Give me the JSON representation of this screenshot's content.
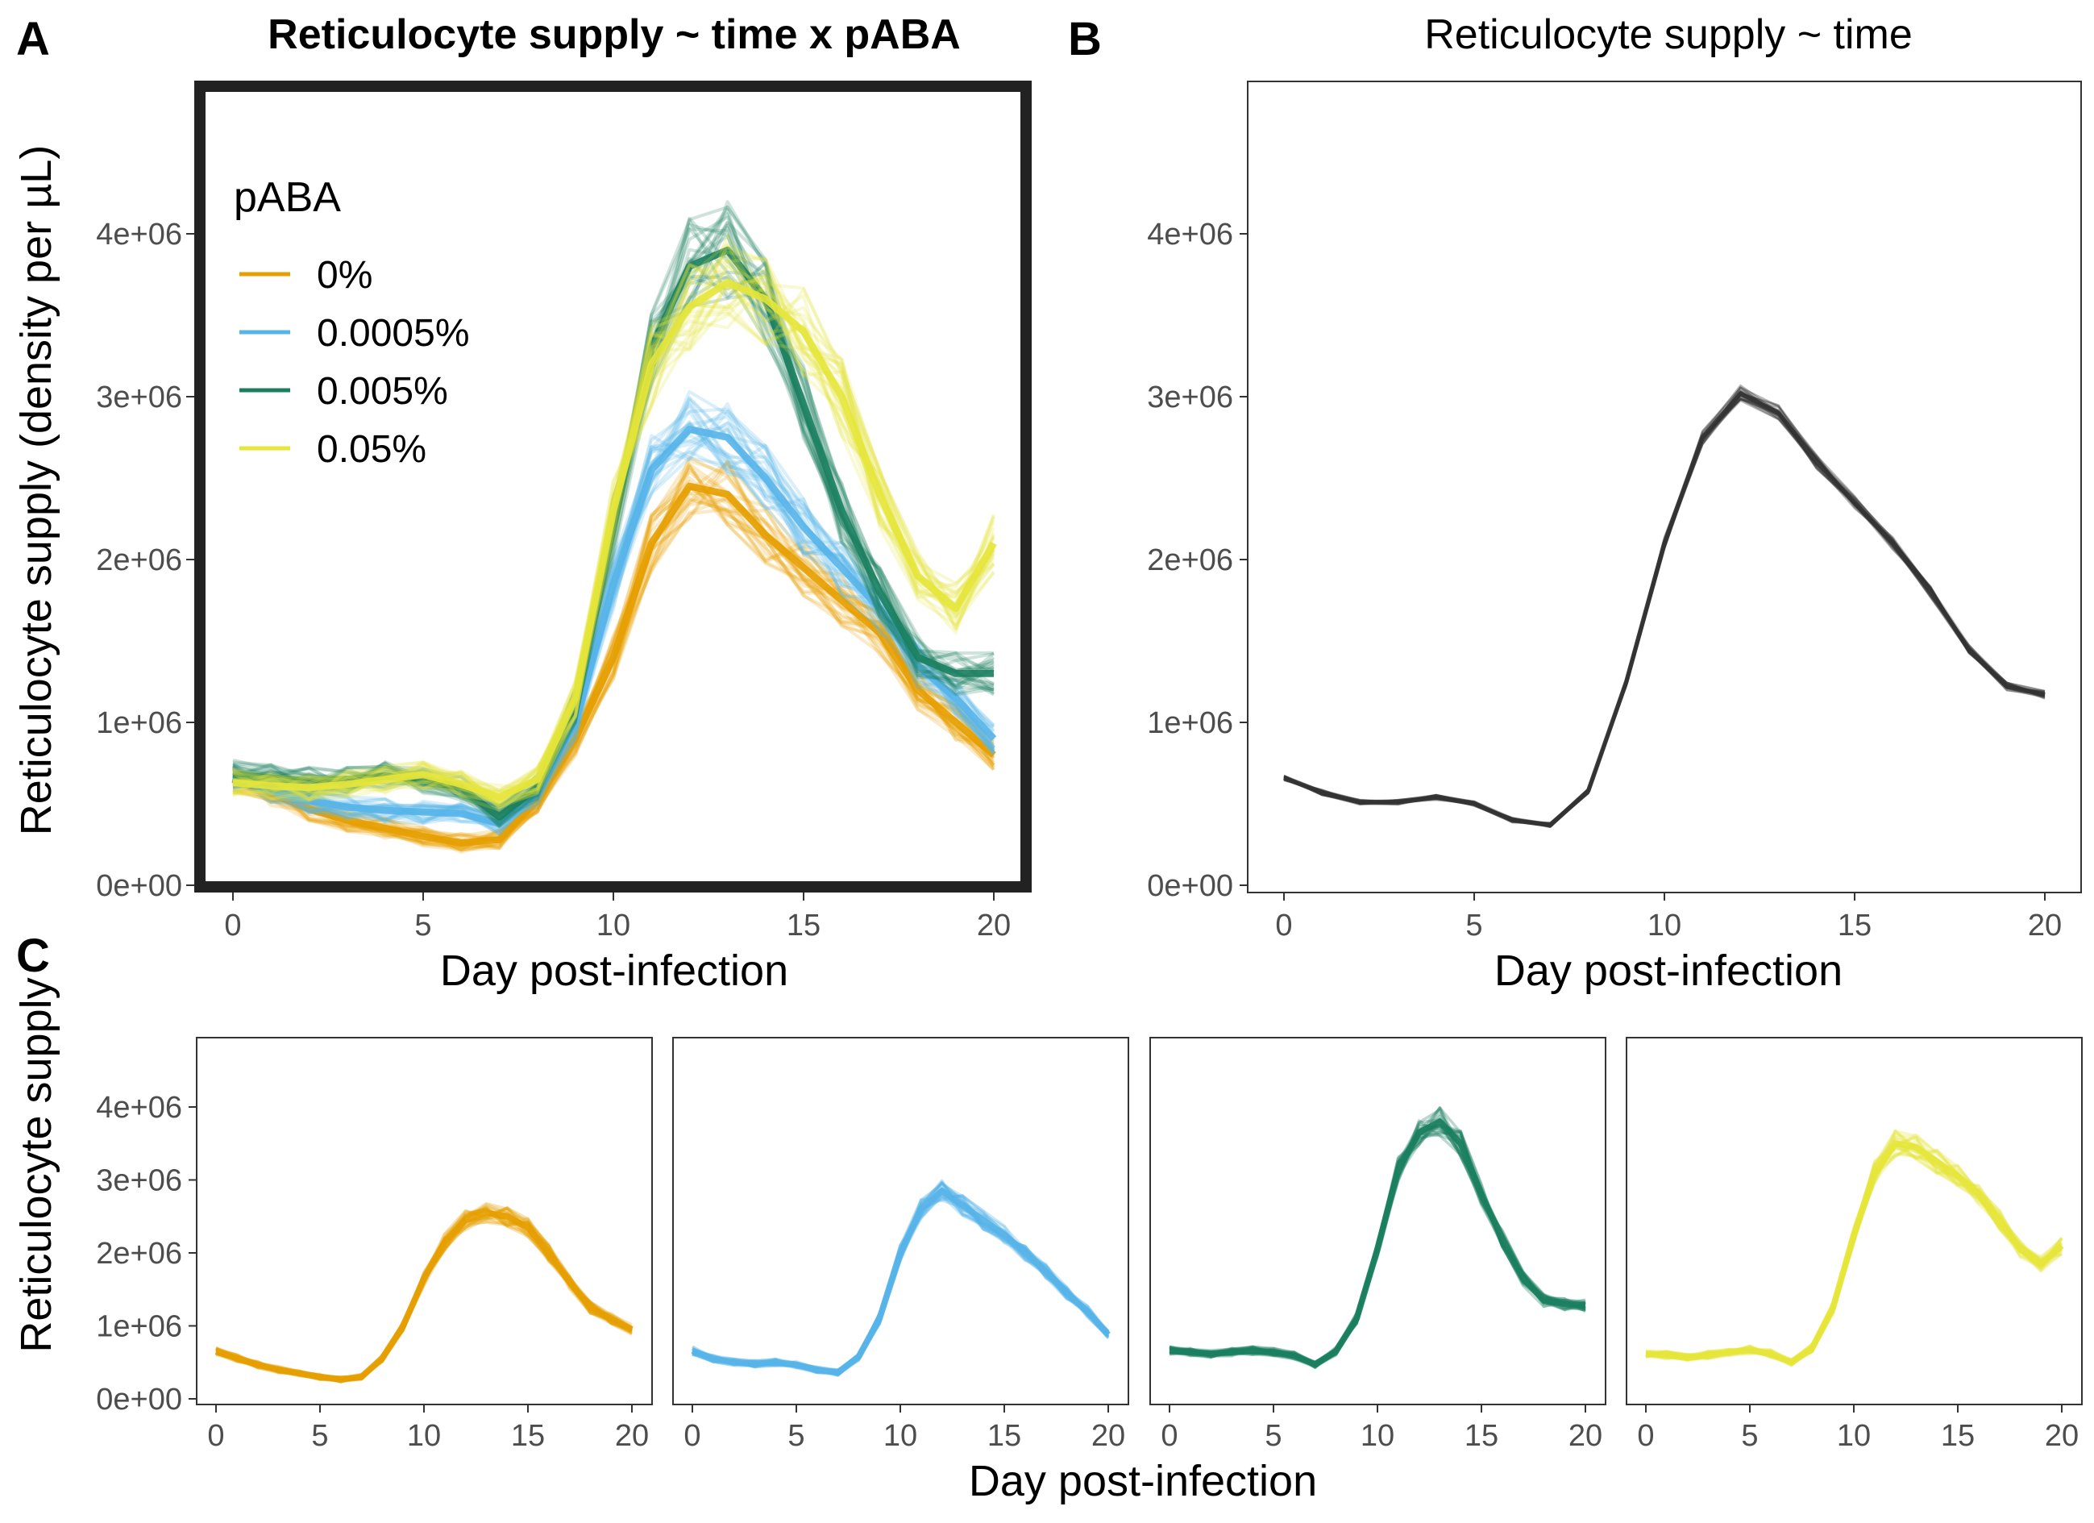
{
  "panels": {
    "A": {
      "letter": "A",
      "title": "Reticulocyte supply ~ time x pABA"
    },
    "B": {
      "letter": "B",
      "title": "Reticulocyte supply ~ time"
    },
    "C": {
      "letter": "C",
      "title": ""
    }
  },
  "axes": {
    "ylabel_AB": "Reticulocyte supply (density per µL)",
    "ylabel_C": "Reticulocyte supply",
    "xlabel": "Day post-infection",
    "x_ticks": [
      "0",
      "5",
      "10",
      "15",
      "20"
    ],
    "y_ticks": [
      "0e+00",
      "1e+06",
      "2e+06",
      "3e+06",
      "4e+06"
    ]
  },
  "legend": {
    "title": "pABA",
    "items": [
      {
        "label": "0%",
        "color": "#E69F00"
      },
      {
        "label": "0.0005%",
        "color": "#56B4E9"
      },
      {
        "label": "0.005%",
        "color": "#1B7F5F"
      },
      {
        "label": "0.05%",
        "color": "#E5E53A"
      }
    ]
  },
  "chart_data": [
    {
      "panel": "A",
      "type": "line",
      "title": "Reticulocyte supply ~ time x pABA",
      "xlabel": "Day post-infection",
      "ylabel": "Reticulocyte supply (density per µL)",
      "xlim": [
        -0.5,
        20.5
      ],
      "ylim": [
        -50000,
        4900000
      ],
      "grid": false,
      "legend_position": "top-left inside",
      "x": [
        0,
        1,
        2,
        3,
        4,
        5,
        6,
        7,
        8,
        9,
        10,
        11,
        12,
        13,
        14,
        15,
        16,
        17,
        18,
        19,
        20
      ],
      "series": [
        {
          "name": "0%",
          "color": "#E69F00",
          "values": [
            650000,
            560000,
            470000,
            400000,
            350000,
            300000,
            260000,
            280000,
            520000,
            900000,
            1400000,
            2100000,
            2450000,
            2400000,
            2150000,
            1950000,
            1750000,
            1550000,
            1200000,
            1000000,
            800000
          ]
        },
        {
          "name": "0.0005%",
          "color": "#56B4E9",
          "values": [
            660000,
            580000,
            520000,
            480000,
            460000,
            450000,
            440000,
            380000,
            560000,
            1000000,
            1850000,
            2550000,
            2800000,
            2750000,
            2500000,
            2200000,
            1950000,
            1700000,
            1350000,
            1150000,
            900000
          ]
        },
        {
          "name": "0.005%",
          "color": "#1B7F5F",
          "values": [
            680000,
            660000,
            640000,
            650000,
            670000,
            650000,
            600000,
            420000,
            600000,
            1100000,
            2200000,
            3300000,
            3800000,
            3900000,
            3600000,
            2950000,
            2300000,
            1800000,
            1400000,
            1300000,
            1300000
          ]
        },
        {
          "name": "0.05%",
          "color": "#E5E53A",
          "values": [
            630000,
            610000,
            600000,
            620000,
            650000,
            680000,
            620000,
            540000,
            650000,
            1150000,
            2300000,
            3200000,
            3550000,
            3700000,
            3600000,
            3400000,
            3000000,
            2400000,
            1900000,
            1700000,
            2100000
          ]
        }
      ]
    },
    {
      "panel": "B",
      "type": "line",
      "title": "Reticulocyte supply ~ time",
      "xlabel": "Day post-infection",
      "ylabel": "Reticulocyte supply (density per µL)",
      "xlim": [
        -0.5,
        20.5
      ],
      "ylim": [
        -50000,
        4900000
      ],
      "grid": false,
      "x": [
        0,
        1,
        2,
        3,
        4,
        5,
        6,
        7,
        8,
        9,
        10,
        11,
        12,
        13,
        14,
        15,
        16,
        17,
        18,
        19,
        20
      ],
      "series": [
        {
          "color": "#333333",
          "values": [
            660000,
            570000,
            510000,
            510000,
            540000,
            500000,
            400000,
            370000,
            580000,
            1250000,
            2100000,
            2750000,
            3020000,
            2900000,
            2600000,
            2350000,
            2100000,
            1800000,
            1450000,
            1220000,
            1170000
          ]
        }
      ]
    },
    {
      "panel": "C",
      "type": "line",
      "xlabel": "Day post-infection",
      "ylabel": "Reticulocyte supply",
      "xlim": [
        -0.5,
        20.5
      ],
      "ylim": [
        -50000,
        4900000
      ],
      "grid": false,
      "facets": [
        {
          "name": "0%",
          "color": "#E69F00",
          "values": [
            650000,
            560000,
            470000,
            400000,
            350000,
            300000,
            270000,
            300000,
            560000,
            1000000,
            1650000,
            2150000,
            2450000,
            2550000,
            2500000,
            2350000,
            2000000,
            1600000,
            1250000,
            1100000,
            950000
          ]
        },
        {
          "name": "0.0005%",
          "color": "#56B4E9",
          "values": [
            660000,
            550000,
            500000,
            480000,
            500000,
            470000,
            400000,
            360000,
            580000,
            1100000,
            2000000,
            2600000,
            2850000,
            2650000,
            2450000,
            2250000,
            2000000,
            1750000,
            1450000,
            1200000,
            880000
          ]
        },
        {
          "name": "0.005%",
          "color": "#1B7F5F",
          "values": [
            660000,
            640000,
            620000,
            640000,
            660000,
            640000,
            590000,
            470000,
            650000,
            1100000,
            2050000,
            3150000,
            3650000,
            3800000,
            3500000,
            2800000,
            2200000,
            1650000,
            1350000,
            1300000,
            1280000
          ]
        },
        {
          "name": "0.05%",
          "color": "#E5E53A",
          "values": [
            620000,
            600000,
            560000,
            600000,
            640000,
            670000,
            620000,
            500000,
            700000,
            1250000,
            2250000,
            3100000,
            3500000,
            3450000,
            3250000,
            3050000,
            2800000,
            2450000,
            2050000,
            1850000,
            2100000
          ]
        }
      ]
    }
  ]
}
